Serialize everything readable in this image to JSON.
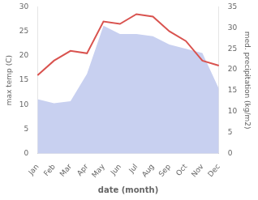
{
  "chart_data": {
    "type": "line",
    "xlabel": "date (month)",
    "ylabel": "max temp (C)",
    "y2label": "med. precipitation (kg/m2)",
    "categories": [
      "Jan",
      "Feb",
      "Mar",
      "Apr",
      "May",
      "Jun",
      "Jul",
      "Aug",
      "Sep",
      "Oct",
      "Nov",
      "Dec"
    ],
    "series": [
      {
        "type": "area",
        "color": "#c8d0f0",
        "axis": "y2",
        "values": [
          13.0,
          12.0,
          12.5,
          19.0,
          30.5,
          28.5,
          28.5,
          28.0,
          26.0,
          25.0,
          24.0,
          15.5
        ]
      },
      {
        "type": "line",
        "color": "#d9534f",
        "values": [
          16.0,
          19.0,
          21.0,
          20.5,
          27.0,
          26.5,
          28.5,
          28.0,
          25.0,
          23.0,
          19.0,
          18.0
        ]
      }
    ],
    "ylim": [
      0,
      30
    ],
    "yticks": [
      0,
      5,
      10,
      15,
      20,
      25,
      30
    ],
    "y2lim": [
      0,
      35
    ],
    "y2ticks": [
      0,
      5,
      10,
      15,
      20,
      25,
      30,
      35
    ],
    "grid": false
  }
}
